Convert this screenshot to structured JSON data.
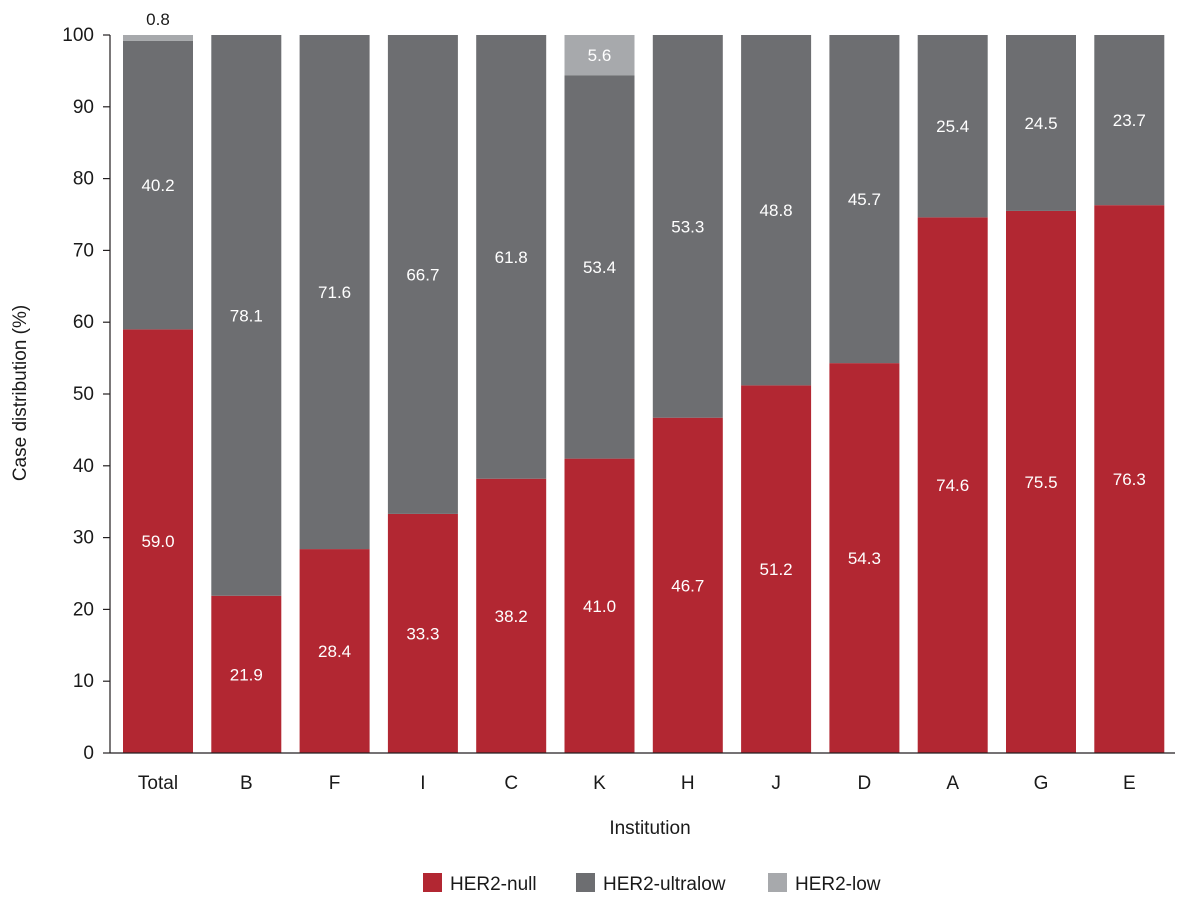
{
  "chart_data": {
    "type": "bar",
    "stacked": true,
    "xlabel": "Institution",
    "ylabel": "Case distribution (%)",
    "ylim": [
      0,
      100
    ],
    "yticks": [
      0,
      10,
      20,
      30,
      40,
      50,
      60,
      70,
      80,
      90,
      100
    ],
    "grid": false,
    "legend_position": "bottom",
    "categories": [
      "Total",
      "B",
      "F",
      "I",
      "C",
      "K",
      "H",
      "J",
      "D",
      "A",
      "G",
      "E"
    ],
    "series": [
      {
        "name": "HER2-null",
        "color": "#b22732",
        "values": [
          59.0,
          21.9,
          28.4,
          33.3,
          38.2,
          41.0,
          46.7,
          51.2,
          54.3,
          74.6,
          75.5,
          76.3
        ],
        "labels": [
          "59.0",
          "21.9",
          "28.4",
          "33.3",
          "38.2",
          "41.0",
          "46.7",
          "51.2",
          "54.3",
          "74.6",
          "75.5",
          "76.3"
        ]
      },
      {
        "name": "HER2-ultralow",
        "color": "#6d6e71",
        "values": [
          40.2,
          78.1,
          71.6,
          66.7,
          61.8,
          53.4,
          53.3,
          48.8,
          45.7,
          25.4,
          24.5,
          23.7
        ],
        "labels": [
          "40.2",
          "78.1",
          "71.6",
          "66.7",
          "61.8",
          "53.4",
          "53.3",
          "48.8",
          "45.7",
          "25.4",
          "24.5",
          "23.7"
        ]
      },
      {
        "name": "HER2-low",
        "color": "#a7a9ac",
        "values": [
          0.8,
          0,
          0,
          0,
          0,
          5.6,
          0,
          0,
          0,
          0,
          0,
          0
        ],
        "labels": [
          "0.8",
          "",
          "",
          "",
          "",
          "5.6",
          "",
          "",
          "",
          "",
          "",
          ""
        ]
      }
    ]
  }
}
